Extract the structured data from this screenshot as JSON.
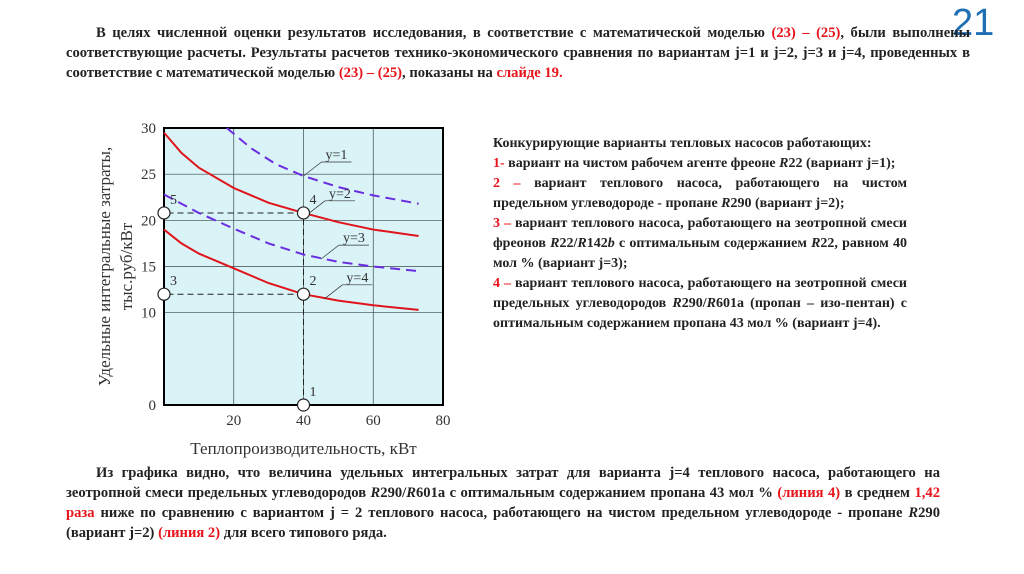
{
  "slide_number": "21",
  "intro": [
    {
      "t": "В целях численной оценки результатов исследования, в соответствие с математической моделью "
    },
    {
      "t": "(23) – (25)",
      "c": "r"
    },
    {
      "t": ", были выполнены соответствующие расчеты. Результаты расчетов технико-экономического сравнения по вариантам j=1 и j=2, j=3 и j=4,  проведенных в соответствие с математической моделью "
    },
    {
      "t": "(23) – (25)",
      "c": "r"
    },
    {
      "t": ", показаны на "
    },
    {
      "t": "слайде 19.",
      "c": "r"
    }
  ],
  "variants": [
    [
      {
        "t": "Конкурирующие варианты тепловых насосов работающих:"
      }
    ],
    [
      {
        "t": "1-",
        "c": "r"
      },
      {
        "t": " вариант на чистом  рабочем агенте фреоне "
      },
      {
        "t": "R",
        "c": "i"
      },
      {
        "t": "22 (вариант j=1);"
      }
    ],
    [
      {
        "t": "2 –",
        "c": "r"
      },
      {
        "t": "  вариант теплового насоса, работающего на чистом  предельном углеводороде - пропане "
      },
      {
        "t": "R",
        "c": "i"
      },
      {
        "t": "290 (вариант j=2);"
      }
    ],
    [
      {
        "t": "3 –",
        "c": "r"
      },
      {
        "t": "  вариант теплового насоса, работающего на зеотропной смеси фреонов "
      },
      {
        "t": "R",
        "c": "i"
      },
      {
        "t": "22/"
      },
      {
        "t": "R",
        "c": "i"
      },
      {
        "t": "142"
      },
      {
        "t": "b",
        "c": "i"
      },
      {
        "t": " с оптимальным содержанием "
      },
      {
        "t": "R",
        "c": "i"
      },
      {
        "t": "22, равном 40 мол % (вариант j=3);"
      }
    ],
    [
      {
        "t": " 4 –",
        "c": "r"
      },
      {
        "t": "  вариант теплового насоса, работающего на зеотропной смеси предельных углеводородов "
      },
      {
        "t": "R",
        "c": "i"
      },
      {
        "t": "290/"
      },
      {
        "t": "R",
        "c": "i"
      },
      {
        "t": "601a (пропан – изо-пентан) с оптимальным содержанием пропана 43 мол % (вариант j=4)."
      }
    ]
  ],
  "conclusion": [
    {
      "t": "Из графика видно, что величина удельных интегральных затрат для варианта j=4 теплового насоса, работающего на зеотропной смеси предельных углеводородов "
    },
    {
      "t": "R",
      "c": "i"
    },
    {
      "t": "290/"
    },
    {
      "t": "R",
      "c": "i"
    },
    {
      "t": "601a с оптимальным содержанием пропана 43 мол % "
    },
    {
      "t": "(линия 4)",
      "c": "r"
    },
    {
      "t": " в среднем "
    },
    {
      "t": "1,42 раза",
      "c": "r"
    },
    {
      "t": " ниже по сравнению  с вариантом j = 2  теплового насоса, работающего на чистом  предельном углеводороде - пропане "
    },
    {
      "t": "R",
      "c": "i"
    },
    {
      "t": "290 (вариант j=2) "
    },
    {
      "t": "(линия 2)",
      "c": "r"
    },
    {
      "t": " для всего типового ряда."
    }
  ],
  "chart_data": {
    "type": "line",
    "xlabel": "Теплопроизводительность,  кВт",
    "ylabel": [
      "Удельные интегральные затраты,",
      "тыс.руб/кВт"
    ],
    "xlim": [
      0,
      80
    ],
    "ylim": [
      0,
      30
    ],
    "xticks": [
      "20",
      "40",
      "60",
      "80"
    ],
    "yticks": [
      "0",
      "10",
      "15",
      "20",
      "25",
      "30"
    ],
    "grid": true,
    "background": "#d9f3f6",
    "series": [
      {
        "name": "y=1",
        "style": "dashed",
        "color": "#6a2de0",
        "x": [
          18,
          25,
          32,
          40,
          50,
          60,
          73
        ],
        "y": [
          30,
          27.8,
          26.1,
          24.8,
          23.6,
          22.7,
          21.8
        ],
        "label_at": [
          40,
          24.8
        ]
      },
      {
        "name": "y=2",
        "style": "solid",
        "color": "#e0141b",
        "x": [
          0,
          5,
          10,
          20,
          30,
          40,
          50,
          60,
          73
        ],
        "y": [
          29.5,
          27.3,
          25.7,
          23.5,
          21.9,
          20.8,
          19.8,
          19,
          18.3
        ],
        "label_at": [
          41,
          20.6
        ]
      },
      {
        "name": "y=3",
        "style": "dashed",
        "color": "#6a2de0",
        "x": [
          0,
          10,
          20,
          30,
          40,
          50,
          60,
          73
        ],
        "y": [
          22.8,
          20.8,
          19.1,
          17.5,
          16.3,
          15.5,
          15,
          14.5
        ],
        "label_at": [
          45,
          15.8
        ]
      },
      {
        "name": "y=4",
        "style": "solid",
        "color": "#e0141b",
        "x": [
          0,
          5,
          10,
          20,
          30,
          40,
          50,
          60,
          73
        ],
        "y": [
          19,
          17.5,
          16.4,
          14.8,
          13.2,
          12,
          11.3,
          10.8,
          10.3
        ],
        "label_at": [
          46,
          11.5
        ]
      }
    ],
    "points": [
      {
        "label": "1",
        "x": 40,
        "y": 0
      },
      {
        "label": "2",
        "x": 40,
        "y": 12
      },
      {
        "label": "3",
        "x": 0,
        "y": 12
      },
      {
        "label": "4",
        "x": 40,
        "y": 20.8
      },
      {
        "label": "5",
        "x": 0,
        "y": 20.8
      }
    ],
    "guides": [
      [
        [
          40,
          0
        ],
        [
          40,
          20.8
        ]
      ],
      [
        [
          40,
          12
        ],
        [
          0,
          12
        ]
      ],
      [
        [
          40,
          20.8
        ],
        [
          0,
          20.8
        ]
      ]
    ]
  }
}
